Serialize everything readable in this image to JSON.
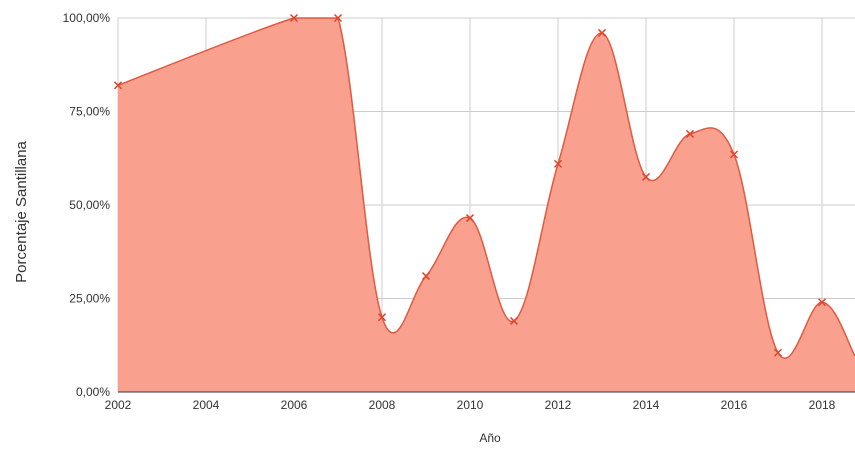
{
  "chart_data": {
    "type": "area",
    "xlabel": "Año",
    "ylabel": "Porcentaje Santillana",
    "xlim": [
      2002,
      2018.75
    ],
    "ylim": [
      0,
      100
    ],
    "x_ticks": [
      {
        "value": 2002,
        "label": "2002"
      },
      {
        "value": 2004,
        "label": "2004"
      },
      {
        "value": 2006,
        "label": "2006"
      },
      {
        "value": 2008,
        "label": "2008"
      },
      {
        "value": 2010,
        "label": "2010"
      },
      {
        "value": 2012,
        "label": "2012"
      },
      {
        "value": 2014,
        "label": "2014"
      },
      {
        "value": 2016,
        "label": "2016"
      },
      {
        "value": 2018,
        "label": "2018"
      }
    ],
    "y_ticks": [
      {
        "value": 0,
        "label": "0,00%"
      },
      {
        "value": 25,
        "label": "25,00%"
      },
      {
        "value": 50,
        "label": "50,00%"
      },
      {
        "value": 75,
        "label": "75,00%"
      },
      {
        "value": 100,
        "label": "100,00%"
      }
    ],
    "x": [
      2002,
      2006,
      2007,
      2008,
      2009,
      2010,
      2011,
      2012,
      2013,
      2014,
      2015,
      2016,
      2017,
      2018
    ],
    "values": [
      82,
      100,
      100,
      20,
      31,
      46.5,
      19,
      61,
      96,
      57.5,
      69,
      63.5,
      10.5,
      24
    ],
    "grid": true,
    "colors": {
      "fill": "#f9a08e",
      "line": "#e05a40",
      "marker": "#e0452b",
      "grid": "#cccccc",
      "axis": "#333333"
    }
  }
}
